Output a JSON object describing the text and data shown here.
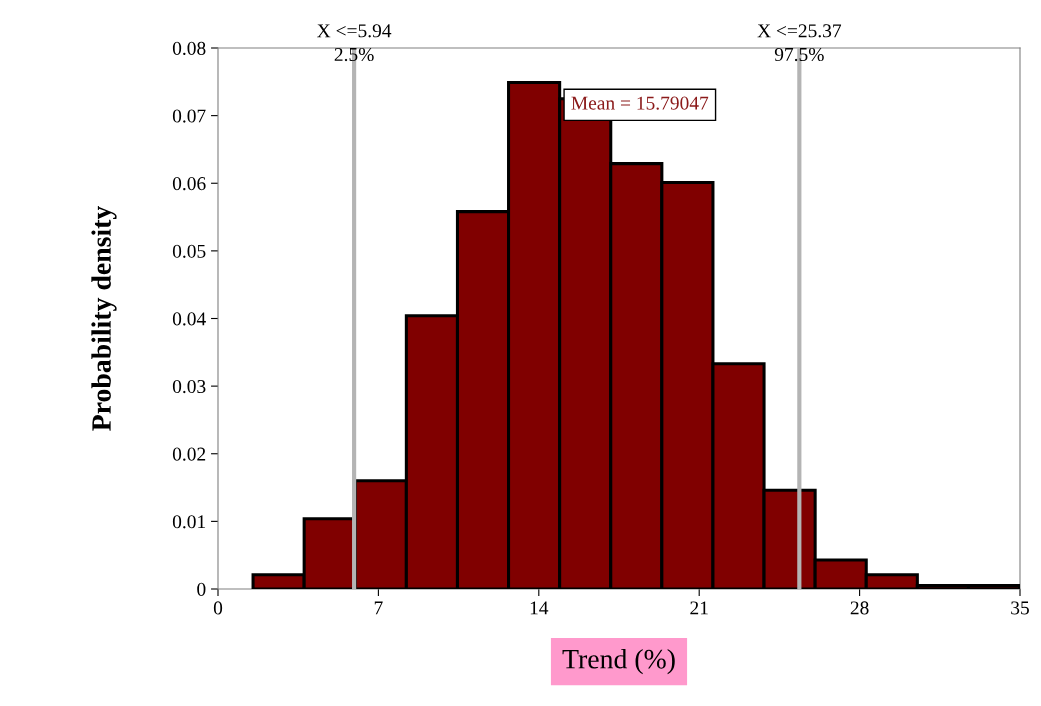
{
  "chart_data": {
    "type": "histogram",
    "xlabel": "Trend (%)",
    "ylabel": "Probability density",
    "bins": [
      1.53,
      3.76,
      5.99,
      8.22,
      10.45,
      12.68,
      14.91,
      17.14,
      19.37,
      21.6,
      23.83,
      26.06,
      28.29,
      30.52,
      32.75,
      34.98
    ],
    "values": [
      0.0021,
      0.0104,
      0.016,
      0.0404,
      0.0558,
      0.0749,
      0.0725,
      0.0629,
      0.0601,
      0.0333,
      0.0146,
      0.0043,
      0.0021,
      0.0005,
      0.0005
    ],
    "color": "#800000",
    "xlim": [
      0,
      35
    ],
    "xticks": [
      0,
      7,
      14,
      21,
      28,
      35
    ],
    "ylim": [
      0,
      0.08
    ],
    "yticks": [
      {
        "value": 0,
        "label": "0"
      },
      {
        "value": 0.01,
        "label": "0.01"
      },
      {
        "value": 0.02,
        "label": "0.02"
      },
      {
        "value": 0.03,
        "label": "0.03"
      },
      {
        "value": 0.04,
        "label": "0.04"
      },
      {
        "value": 0.05,
        "label": "0.05"
      },
      {
        "value": 0.06,
        "label": "0.06"
      },
      {
        "value": 0.07,
        "label": "0.07"
      },
      {
        "value": 0.08,
        "label": "0.08"
      }
    ],
    "ref_lines": [
      {
        "axis": "x",
        "value": 5.94,
        "label": "X <=5.94\n2.5%",
        "color": "#b4b4b4"
      },
      {
        "axis": "x",
        "value": 25.37,
        "label": "X <=25.37\n97.5%",
        "color": "#b4b4b4"
      }
    ],
    "annotations": [
      "Mean = 15.79047"
    ],
    "grid": false
  }
}
